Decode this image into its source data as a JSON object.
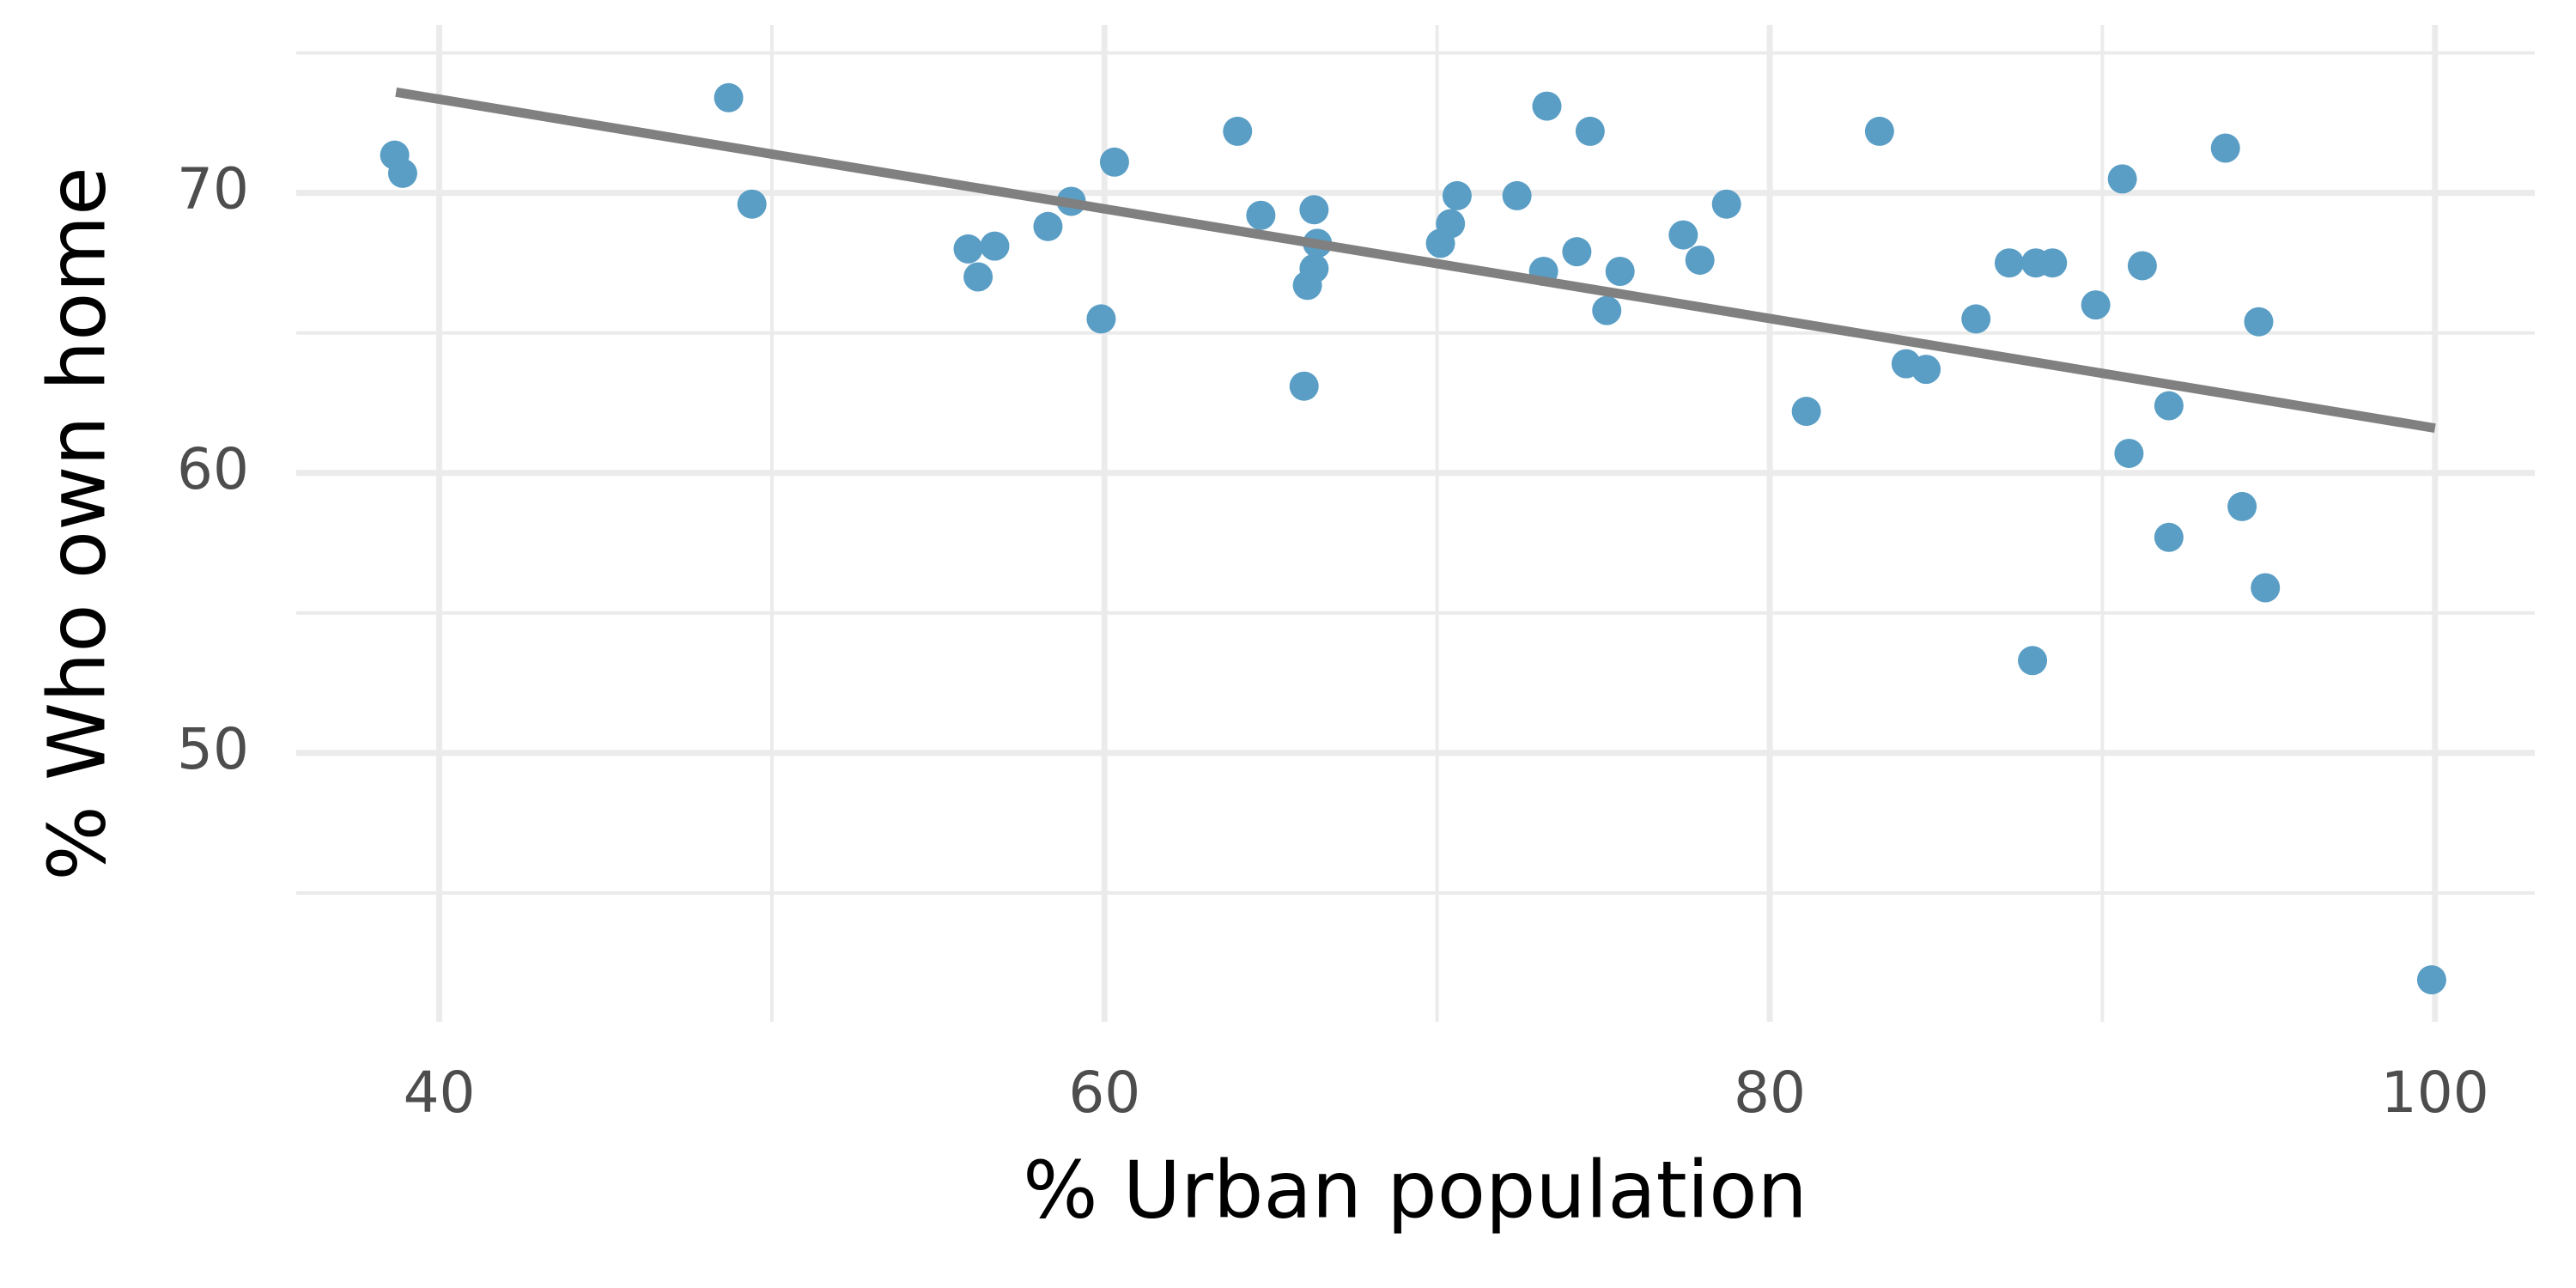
{
  "chart_data": {
    "type": "scatter",
    "x_label": "% Urban population",
    "y_label": "% Who own home",
    "color": "#5a9ec5",
    "x": [
      38.66,
      38.9,
      48.7,
      49.4,
      55.9,
      56.2,
      56.7,
      58.3,
      59.0,
      59.9,
      60.3,
      64.0,
      64.7,
      66.3,
      66.4,
      66.3,
      66.1,
      66.0,
      70.1,
      70.4,
      70.6,
      72.4,
      73.2,
      73.3,
      74.2,
      74.6,
      75.1,
      75.5,
      77.4,
      77.9,
      78.7,
      81.1,
      83.3,
      84.1,
      84.7,
      86.2,
      87.2,
      88.0,
      88.5,
      87.9,
      89.8,
      90.6,
      90.8,
      91.2,
      92.0,
      92.0,
      93.7,
      94.2,
      94.7,
      94.9,
      99.9
    ],
    "values": [
      71.35,
      70.7,
      73.4,
      69.6,
      68.0,
      67.0,
      68.1,
      68.8,
      69.7,
      65.5,
      71.1,
      72.2,
      69.2,
      69.4,
      68.2,
      67.3,
      66.7,
      63.1,
      68.2,
      68.9,
      69.9,
      69.9,
      67.2,
      73.1,
      67.9,
      72.2,
      65.8,
      67.2,
      68.5,
      67.6,
      69.6,
      62.2,
      72.2,
      63.9,
      63.7,
      65.5,
      67.5,
      67.5,
      67.5,
      53.3,
      66.0,
      70.5,
      60.7,
      67.4,
      62.4,
      57.7,
      71.6,
      58.8,
      65.4,
      55.9,
      41.9
    ],
    "trend_line": {
      "x": [
        38.7,
        100
      ],
      "y": [
        73.6,
        61.6
      ],
      "color": "#808080"
    },
    "xlim": [
      35.7,
      103.0
    ],
    "ylim": [
      40.4,
      76.0
    ],
    "xticks": [
      40,
      60,
      80,
      100
    ],
    "yticks": [
      50,
      60,
      70
    ],
    "xticks_minor": [
      50,
      70,
      90
    ],
    "yticks_minor": [
      45,
      55,
      65,
      75
    ],
    "grid": true
  }
}
